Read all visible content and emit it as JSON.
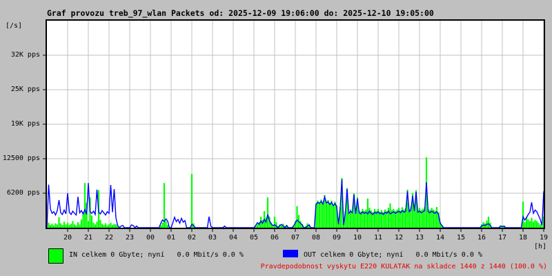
{
  "title": "Graf provozu treb_97_wlan Packets od: 2025-12-09 19:06:00 do: 2025-12-10 19:05:00",
  "status_text": "Pravdepodobnost vyskytu E220 KULATAK na skladce 1440 z 1440 (100.0 %)",
  "colors": {
    "background": "#c0c0c0",
    "plot_background": "#ffffff",
    "grid": "#c0c0c0",
    "axis": "#000000",
    "in_series": "#00ff00",
    "out_series": "#0000ff",
    "status_text": "#e60000"
  },
  "y_axis": {
    "unit_label": "[/s]",
    "ticks": [
      {
        "value": 6250,
        "label": "6200 pps"
      },
      {
        "value": 12500,
        "label": "12500 pps"
      },
      {
        "value": 18750,
        "label": "19K pps"
      },
      {
        "value": 25000,
        "label": "25K pps"
      },
      {
        "value": 31250,
        "label": "32K pps"
      }
    ]
  },
  "x_axis": {
    "unit_label": "[h]",
    "labels": [
      "20",
      "21",
      "22",
      "23",
      "00",
      "01",
      "02",
      "03",
      "04",
      "05",
      "06",
      "07",
      "08",
      "09",
      "10",
      "11",
      "12",
      "13",
      "14",
      "15",
      "16",
      "17",
      "18",
      "19"
    ]
  },
  "legend": {
    "in_label": "IN celkem 0 Gbyte; nyní   0.0 Mbit/s 0.0 %",
    "out_label": "OUT celkem 0 Gbyte; nyní   0.0 Mbit/s 0.0 %"
  },
  "chart_data": {
    "type": "line",
    "title": "Graf provozu treb_97_wlan Packets od: 2025-12-09 19:06:00 do: 2025-12-10 19:05:00",
    "xlabel": "[h]",
    "ylabel": "[/s] (pps)",
    "ylim": [
      0,
      37500
    ],
    "x_hours_span": 24,
    "step_min": 5,
    "grid": true,
    "legend_position": "bottom",
    "series": [
      {
        "name": "IN",
        "color": "#00ff00",
        "style": "filled-bars",
        "values": [
          0,
          900,
          500,
          700,
          400,
          800,
          600,
          1900,
          800,
          500,
          1100,
          600,
          900,
          500,
          700,
          1200,
          600,
          400,
          1000,
          600,
          1500,
          2800,
          8100,
          4500,
          1200,
          5500,
          2200,
          900,
          600,
          1100,
          6800,
          1400,
          700,
          500,
          800,
          400,
          600,
          900,
          500,
          700,
          600,
          300,
          0,
          0,
          0,
          0,
          0,
          0,
          0,
          0,
          0,
          0,
          0,
          0,
          0,
          0,
          0,
          0,
          0,
          0,
          0,
          0,
          0,
          0,
          0,
          0,
          400,
          900,
          8100,
          1200,
          500,
          0,
          0,
          0,
          0,
          0,
          0,
          0,
          0,
          0,
          0,
          0,
          0,
          0,
          9750,
          800,
          0,
          0,
          0,
          0,
          0,
          0,
          0,
          0,
          0,
          0,
          0,
          0,
          0,
          0,
          0,
          0,
          0,
          0,
          0,
          0,
          0,
          0,
          0,
          0,
          0,
          0,
          0,
          0,
          0,
          0,
          0,
          0,
          0,
          0,
          0,
          300,
          600,
          1000,
          2000,
          1400,
          3000,
          1800,
          5500,
          2000,
          900,
          400,
          2000,
          1000,
          300,
          600,
          400,
          700,
          300,
          500,
          0,
          0,
          0,
          400,
          1200,
          3900,
          2300,
          1200,
          700,
          0,
          300,
          800,
          600,
          0,
          0,
          0,
          4400,
          4900,
          4600,
          5100,
          4500,
          5900,
          4700,
          5000,
          4400,
          4900,
          4200,
          4700,
          4000,
          800,
          3700,
          9000,
          700,
          3000,
          7200,
          2800,
          3300,
          2900,
          6200,
          2800,
          5500,
          3100,
          2900,
          3400,
          3000,
          3300,
          5300,
          3600,
          3100,
          2800,
          3400,
          3000,
          3400,
          2900,
          3200,
          2800,
          3300,
          3000,
          3600,
          4400,
          3200,
          3400,
          3000,
          3300,
          3600,
          3100,
          3700,
          3300,
          3500,
          6900,
          3400,
          3800,
          6300,
          3500,
          6800,
          3300,
          3600,
          3200,
          3400,
          3700,
          12750,
          3400,
          3200,
          3600,
          3300,
          3100,
          3750,
          2800,
          1000,
          500,
          0,
          0,
          0,
          0,
          0,
          0,
          0,
          0,
          0,
          0,
          0,
          0,
          0,
          0,
          0,
          0,
          0,
          0,
          0,
          0,
          0,
          0,
          600,
          1000,
          800,
          1300,
          2000,
          900,
          0,
          0,
          0,
          0,
          0,
          400,
          300,
          400,
          0,
          0,
          0,
          0,
          0,
          0,
          0,
          0,
          0,
          0,
          4750,
          1000,
          2000,
          1500,
          1200,
          1800,
          1100,
          1400,
          1200,
          900,
          600,
          300,
          2000
        ]
      },
      {
        "name": "OUT",
        "color": "#0000ff",
        "style": "line",
        "values": [
          0,
          7800,
          3400,
          2600,
          2900,
          2300,
          3100,
          5000,
          2700,
          2400,
          3200,
          2500,
          6250,
          2800,
          2400,
          3000,
          2600,
          2300,
          5600,
          2700,
          3100,
          2500,
          3300,
          2400,
          8100,
          2900,
          2600,
          3000,
          2400,
          6900,
          2800,
          2500,
          3100,
          2700,
          2300,
          2900,
          2600,
          7750,
          2800,
          7000,
          1800,
          400,
          0,
          300,
          400,
          0,
          0,
          0,
          0,
          500,
          400,
          0,
          300,
          0,
          0,
          0,
          0,
          0,
          0,
          0,
          0,
          0,
          0,
          0,
          0,
          0,
          800,
          1400,
          1100,
          1600,
          1200,
          0,
          0,
          900,
          1900,
          1100,
          1500,
          800,
          1700,
          1000,
          1300,
          0,
          0,
          0,
          600,
          400,
          0,
          0,
          0,
          0,
          0,
          0,
          0,
          0,
          2000,
          300,
          0,
          0,
          0,
          0,
          0,
          0,
          0,
          300,
          0,
          0,
          0,
          0,
          0,
          0,
          0,
          0,
          0,
          0,
          0,
          0,
          0,
          0,
          0,
          0,
          0,
          400,
          900,
          600,
          1200,
          800,
          1500,
          1000,
          2400,
          1300,
          700,
          400,
          500,
          300,
          0,
          400,
          600,
          300,
          0,
          400,
          0,
          0,
          0,
          300,
          900,
          1400,
          1100,
          800,
          500,
          0,
          0,
          300,
          500,
          0,
          0,
          0,
          4200,
          4600,
          4400,
          4800,
          4300,
          5600,
          4500,
          4700,
          4200,
          4600,
          4000,
          4400,
          3800,
          600,
          3500,
          8750,
          500,
          2800,
          7000,
          2600,
          3000,
          2700,
          6000,
          2500,
          5250,
          2700,
          2500,
          2900,
          2600,
          2800,
          2500,
          3000,
          2600,
          2400,
          2800,
          2600,
          2900,
          2500,
          2700,
          2400,
          2800,
          2600,
          3000,
          2500,
          2700,
          2900,
          2600,
          2800,
          3000,
          2700,
          3100,
          2800,
          3000,
          6600,
          2900,
          3200,
          5800,
          3000,
          6500,
          2800,
          3000,
          2700,
          2900,
          3100,
          8250,
          2900,
          2700,
          3000,
          2800,
          2600,
          2900,
          2400,
          800,
          400,
          0,
          0,
          0,
          0,
          0,
          0,
          0,
          0,
          0,
          0,
          0,
          0,
          0,
          0,
          0,
          0,
          0,
          0,
          0,
          0,
          0,
          0,
          300,
          500,
          400,
          600,
          700,
          400,
          0,
          0,
          0,
          0,
          0,
          300,
          200,
          300,
          0,
          0,
          0,
          0,
          0,
          0,
          0,
          0,
          0,
          0,
          2000,
          1400,
          1800,
          2400,
          2800,
          4600,
          2600,
          3200,
          2900,
          2200,
          1500,
          400,
          6600
        ]
      }
    ]
  }
}
